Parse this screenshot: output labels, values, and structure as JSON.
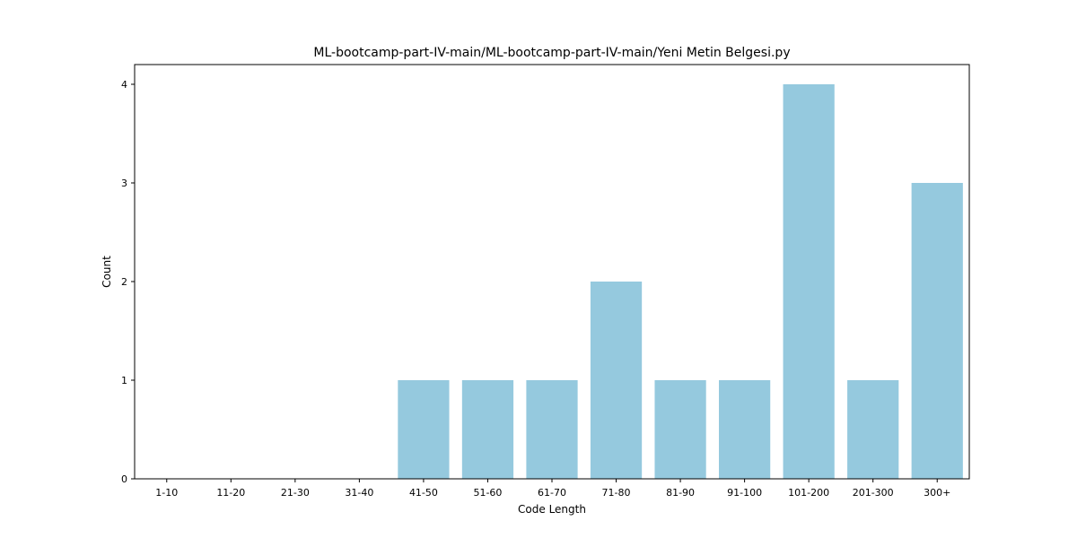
{
  "chart_data": {
    "type": "bar",
    "title": "ML-bootcamp-part-IV-main/ML-bootcamp-part-IV-main/Yeni Metin Belgesi.py",
    "xlabel": "Code Length",
    "ylabel": "Count",
    "categories": [
      "1-10",
      "11-20",
      "21-30",
      "31-40",
      "41-50",
      "51-60",
      "61-70",
      "71-80",
      "81-90",
      "91-100",
      "101-200",
      "201-300",
      "300+"
    ],
    "values": [
      0,
      0,
      0,
      0,
      1,
      1,
      1,
      2,
      1,
      1,
      4,
      1,
      3
    ],
    "ylim": [
      0,
      4.2
    ],
    "yticks": [
      0,
      1,
      2,
      3,
      4
    ],
    "bar_color": "#95c9de",
    "grid": false
  }
}
